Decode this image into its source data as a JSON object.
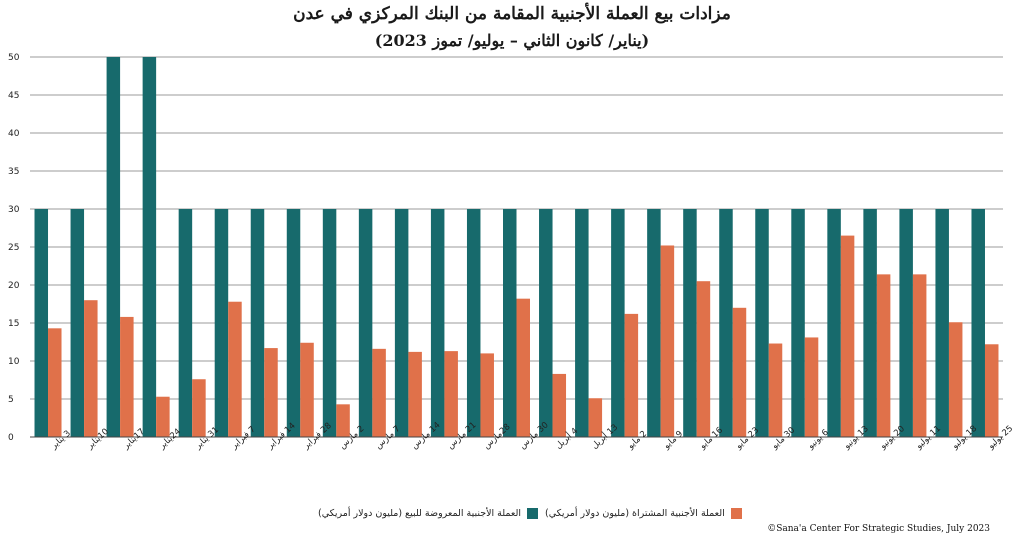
{
  "title_line1": "مزادات بيع العملة الأجنبية المقامة من البنك المركزي في عدن",
  "title_line2": "(يناير/ كانون الثاني – يوليو/ تموز 2023)",
  "credit": "©Sana'a Center For Strategic Studies, July 2023",
  "colors": {
    "offered": "#176a6c",
    "purchased": "#e0714a",
    "grid": "#7a7a7a",
    "axis": "#444444"
  },
  "chart_data": {
    "type": "bar",
    "ylim": [
      0,
      50
    ],
    "yticks": [
      0,
      5,
      10,
      15,
      20,
      25,
      30,
      35,
      40,
      45,
      50
    ],
    "grid": true,
    "legend_position": "bottom",
    "categories": [
      "3 يناير",
      "10يناير",
      "17يناير",
      "24يناير",
      "31 يناير",
      "7 فبراير",
      "14 فبراير",
      "28 فبراير",
      "2 مارس",
      "7 مارس",
      "14 مارس",
      "21 مارس",
      "28مارس",
      "30 مارس",
      "4 أبريل",
      "13 أبريل",
      "2 مايو",
      "9 مايو",
      "16 مايو",
      "23 مايو",
      "30 مايو",
      "6 يونيو",
      "13 يونيو",
      "20 يونيو",
      "11 يوليو",
      "18 يوليو",
      "25 يوليو"
    ],
    "series": [
      {
        "name": "العملة الأجنبية المعروضة للبيع (مليون دولار أمريكي)",
        "values": [
          30,
          30,
          50,
          50,
          30,
          30,
          30,
          30,
          30,
          30,
          30,
          30,
          30,
          30,
          30,
          30,
          30,
          30,
          30,
          30,
          30,
          30,
          30,
          30,
          30,
          30,
          30
        ]
      },
      {
        "name": "العملة الأجنبية المشتراة (مليون دولار أمريكي)",
        "values": [
          14.3,
          18,
          15.8,
          5.3,
          7.6,
          17.8,
          11.7,
          12.4,
          4.3,
          11.6,
          11.2,
          11.3,
          11,
          18.2,
          8.3,
          5.1,
          16.2,
          25.2,
          20.5,
          17,
          12.3,
          13.1,
          26.5,
          21.4,
          21.4,
          15.1,
          12.2
        ]
      }
    ]
  }
}
